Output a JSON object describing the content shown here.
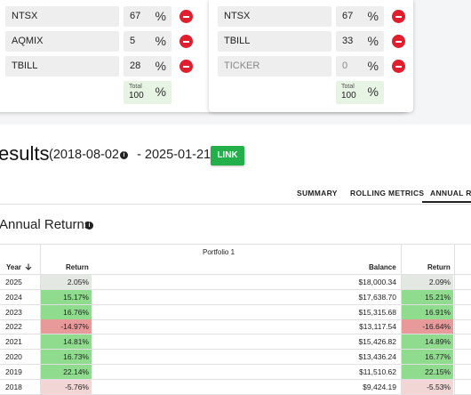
{
  "portfolio1": {
    "rows": [
      {
        "ticker": "NTSX",
        "pct": "67"
      },
      {
        "ticker": "AQMIX",
        "pct": "5"
      },
      {
        "ticker": "TBILL",
        "pct": "28"
      }
    ],
    "total_label": "Total",
    "total_value": "100"
  },
  "portfolio2": {
    "rows": [
      {
        "ticker": "NTSX",
        "pct": "67"
      },
      {
        "ticker": "TBILL",
        "pct": "33"
      },
      {
        "ticker": "",
        "ticker_placeholder": "TICKER",
        "pct": "",
        "pct_placeholder": "0"
      }
    ],
    "total_label": "Total",
    "total_value": "100"
  },
  "percent_sign": "%",
  "results": {
    "title": "esults",
    "date_range_start": "(2018-08-02",
    "date_range_end": "- 2025-01-21)",
    "link_label": "LINK"
  },
  "tabs": [
    "SUMMARY",
    "ROLLING METRICS",
    "ANNUAL RETU"
  ],
  "annual": {
    "title": "Annual Returns",
    "portfolio_header": "Portfolio 1",
    "col_year": "Year",
    "col_return": "Return",
    "col_balance": "Balance",
    "col_return2": "Return",
    "colors": {
      "positive": "#8fdc8f",
      "negative": "#e89a9a",
      "neutral": "#e3e8e3",
      "light_negative": "#f2d6d6"
    },
    "rows": [
      {
        "year": "2025",
        "ret1": "2.05%",
        "balance": "$18,000.34",
        "ret2": "2.09%",
        "v1": 2.05,
        "v2": 2.09
      },
      {
        "year": "2024",
        "ret1": "15.17%",
        "balance": "$17,638.70",
        "ret2": "15.21%",
        "v1": 15.17,
        "v2": 15.21
      },
      {
        "year": "2023",
        "ret1": "16.76%",
        "balance": "$15,315.68",
        "ret2": "16.91%",
        "v1": 16.76,
        "v2": 16.91
      },
      {
        "year": "2022",
        "ret1": "-14.97%",
        "balance": "$13,117.54",
        "ret2": "-16.64%",
        "v1": -14.97,
        "v2": -16.64
      },
      {
        "year": "2021",
        "ret1": "14.81%",
        "balance": "$15,426.82",
        "ret2": "14.89%",
        "v1": 14.81,
        "v2": 14.89
      },
      {
        "year": "2020",
        "ret1": "16.73%",
        "balance": "$13,436.24",
        "ret2": "16.77%",
        "v1": 16.73,
        "v2": 16.77
      },
      {
        "year": "2019",
        "ret1": "22.14%",
        "balance": "$11,510.62",
        "ret2": "22.15%",
        "v1": 22.14,
        "v2": 22.15
      },
      {
        "year": "2018",
        "ret1": "-5.76%",
        "balance": "$9,424.19",
        "ret2": "-5.53%",
        "v1": -5.76,
        "v2": -5.53
      }
    ]
  }
}
